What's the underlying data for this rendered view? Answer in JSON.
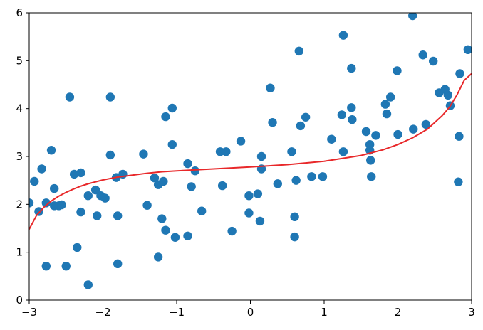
{
  "chart_data": {
    "type": "scatter",
    "xlim": [
      -3,
      3
    ],
    "ylim": [
      0,
      6
    ],
    "x_ticks": [
      -3,
      -2,
      -1,
      0,
      1,
      2,
      3
    ],
    "x_tick_labels": [
      "−3",
      "−2",
      "−1",
      "0",
      "1",
      "2",
      "3"
    ],
    "y_ticks": [
      0,
      1,
      2,
      3,
      4,
      5,
      6
    ],
    "y_tick_labels": [
      "0",
      "1",
      "2",
      "3",
      "4",
      "5",
      "6"
    ],
    "grid": false,
    "series": [
      {
        "kind": "scatter",
        "color": "#1f77b4",
        "points": [
          [
            -3.0,
            2.03
          ],
          [
            -2.93,
            2.48
          ],
          [
            -2.87,
            1.85
          ],
          [
            -2.83,
            2.74
          ],
          [
            -2.77,
            0.71
          ],
          [
            -2.77,
            2.03
          ],
          [
            -2.7,
            3.13
          ],
          [
            -2.66,
            2.33
          ],
          [
            -2.66,
            1.97
          ],
          [
            -2.6,
            1.97
          ],
          [
            -2.56,
            1.99
          ],
          [
            -2.5,
            0.71
          ],
          [
            -2.45,
            4.24
          ],
          [
            -2.39,
            2.63
          ],
          [
            -2.35,
            1.1
          ],
          [
            -2.3,
            2.66
          ],
          [
            -2.3,
            1.84
          ],
          [
            -2.2,
            2.18
          ],
          [
            -2.2,
            0.32
          ],
          [
            -2.1,
            2.3
          ],
          [
            -2.08,
            1.76
          ],
          [
            -2.03,
            2.18
          ],
          [
            -1.97,
            2.13
          ],
          [
            -1.9,
            4.24
          ],
          [
            -1.9,
            3.03
          ],
          [
            -1.82,
            2.56
          ],
          [
            -1.8,
            1.76
          ],
          [
            -1.8,
            0.76
          ],
          [
            -1.73,
            2.63
          ],
          [
            -1.45,
            3.05
          ],
          [
            -1.4,
            1.98
          ],
          [
            -1.3,
            2.55
          ],
          [
            -1.25,
            2.41
          ],
          [
            -1.25,
            0.9
          ],
          [
            -1.2,
            1.7
          ],
          [
            -1.18,
            2.48
          ],
          [
            -1.15,
            3.83
          ],
          [
            -1.15,
            1.46
          ],
          [
            -1.06,
            4.01
          ],
          [
            -1.06,
            3.25
          ],
          [
            -1.02,
            1.31
          ],
          [
            -0.85,
            2.85
          ],
          [
            -0.85,
            1.34
          ],
          [
            -0.8,
            2.37
          ],
          [
            -0.75,
            2.7
          ],
          [
            -0.66,
            1.86
          ],
          [
            -0.41,
            3.1
          ],
          [
            -0.38,
            2.39
          ],
          [
            -0.33,
            3.1
          ],
          [
            -0.25,
            1.44
          ],
          [
            -0.13,
            3.32
          ],
          [
            -0.02,
            2.18
          ],
          [
            -0.02,
            1.82
          ],
          [
            0.1,
            2.22
          ],
          [
            0.13,
            1.65
          ],
          [
            0.15,
            3.0
          ],
          [
            0.15,
            2.74
          ],
          [
            0.27,
            4.43
          ],
          [
            0.3,
            3.71
          ],
          [
            0.37,
            2.43
          ],
          [
            0.56,
            3.1
          ],
          [
            0.6,
            1.74
          ],
          [
            0.6,
            1.32
          ],
          [
            0.62,
            2.5
          ],
          [
            0.66,
            5.2
          ],
          [
            0.68,
            3.64
          ],
          [
            0.75,
            3.82
          ],
          [
            0.83,
            2.58
          ],
          [
            0.98,
            2.58
          ],
          [
            1.1,
            3.36
          ],
          [
            1.24,
            3.87
          ],
          [
            1.26,
            5.53
          ],
          [
            1.26,
            3.1
          ],
          [
            1.37,
            4.84
          ],
          [
            1.37,
            4.02
          ],
          [
            1.38,
            3.77
          ],
          [
            1.57,
            3.52
          ],
          [
            1.62,
            3.25
          ],
          [
            1.62,
            3.13
          ],
          [
            1.63,
            2.92
          ],
          [
            1.64,
            2.58
          ],
          [
            1.7,
            3.44
          ],
          [
            1.83,
            4.09
          ],
          [
            1.85,
            3.89
          ],
          [
            1.9,
            4.24
          ],
          [
            1.99,
            4.79
          ],
          [
            2.0,
            3.46
          ],
          [
            2.2,
            5.94
          ],
          [
            2.21,
            3.57
          ],
          [
            2.34,
            5.12
          ],
          [
            2.38,
            3.67
          ],
          [
            2.48,
            4.99
          ],
          [
            2.56,
            4.33
          ],
          [
            2.64,
            4.4
          ],
          [
            2.68,
            4.28
          ],
          [
            2.71,
            4.06
          ],
          [
            2.82,
            2.47
          ],
          [
            2.83,
            3.42
          ],
          [
            2.84,
            4.73
          ],
          [
            2.95,
            5.23
          ]
        ]
      },
      {
        "kind": "line",
        "color": "#e8282a",
        "points": [
          [
            -3.0,
            1.48
          ],
          [
            -2.9,
            1.77
          ],
          [
            -2.8,
            1.94
          ],
          [
            -2.7,
            2.07
          ],
          [
            -2.6,
            2.17
          ],
          [
            -2.5,
            2.25
          ],
          [
            -2.4,
            2.32
          ],
          [
            -2.3,
            2.38
          ],
          [
            -2.2,
            2.43
          ],
          [
            -2.0,
            2.51
          ],
          [
            -1.8,
            2.57
          ],
          [
            -1.6,
            2.61
          ],
          [
            -1.4,
            2.65
          ],
          [
            -1.2,
            2.68
          ],
          [
            -1.0,
            2.7
          ],
          [
            -0.5,
            2.74
          ],
          [
            0.0,
            2.78
          ],
          [
            0.5,
            2.83
          ],
          [
            1.0,
            2.9
          ],
          [
            1.5,
            3.02
          ],
          [
            1.8,
            3.14
          ],
          [
            2.0,
            3.25
          ],
          [
            2.2,
            3.39
          ],
          [
            2.4,
            3.57
          ],
          [
            2.6,
            3.85
          ],
          [
            2.7,
            4.03
          ],
          [
            2.8,
            4.28
          ],
          [
            2.9,
            4.59
          ],
          [
            3.0,
            4.73
          ]
        ]
      }
    ]
  }
}
